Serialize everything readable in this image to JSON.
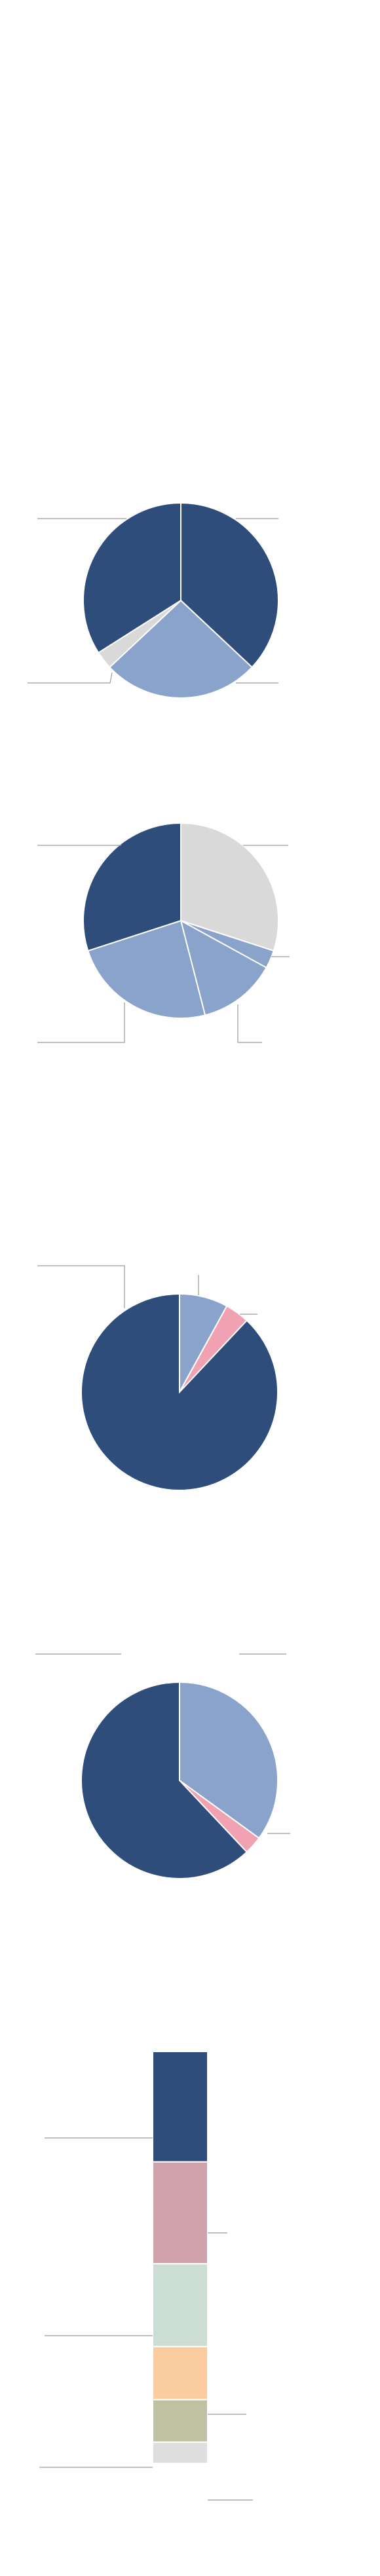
{
  "chart_data": [
    {
      "type": "pie",
      "values": [
        37,
        26,
        3,
        34
      ],
      "colors": [
        "#2e4d7b",
        "#8aa3cb",
        "#d9d9d9",
        "#2e4d7b"
      ]
    },
    {
      "type": "pie",
      "values": [
        30,
        3,
        13,
        24,
        30
      ],
      "colors": [
        "#d9d9d9",
        "#8aa3cb",
        "#8aa3cb",
        "#8aa3cb",
        "#2e4d7b"
      ]
    },
    {
      "type": "pie",
      "values": [
        8,
        4,
        88
      ],
      "colors": [
        "#8aa3cb",
        "#f0a1b2",
        "#2e4d7b"
      ]
    },
    {
      "type": "pie",
      "values": [
        35,
        3,
        62
      ],
      "colors": [
        "#8aa3cb",
        "#f0a1b2",
        "#2e4d7b"
      ]
    },
    {
      "type": "bar",
      "stacked": true,
      "values": [
        26,
        24,
        19.5,
        12.5,
        10,
        5
      ],
      "colors": [
        "#2e4d7b",
        "#d0a2ac",
        "#ccddd3",
        "#fccca1",
        "#c0c1a3",
        "#dedede"
      ]
    }
  ]
}
